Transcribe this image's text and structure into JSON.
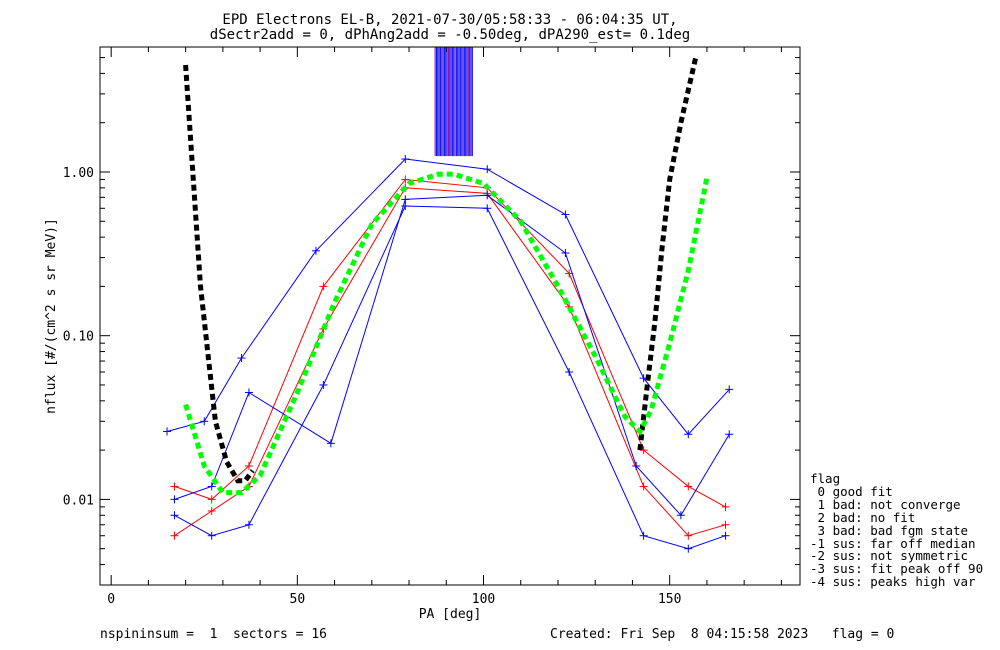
{
  "chart_data": {
    "type": "scatter",
    "title_line1": "EPD Electrons EL-B, 2021-07-30/05:58:33 - 06:04:35 UT,",
    "title_line2": "dSectr2add = 0, dPhAng2add = -0.50deg, dPA290_est=   0.1deg",
    "xlabel": "PA [deg]",
    "ylabel": "nflux [#/(cm^2 s sr MeV)]",
    "xlim": [
      -3,
      185
    ],
    "ylim": [
      0.003,
      5.8
    ],
    "yscale": "log",
    "xticks": [
      0,
      50,
      100,
      150
    ],
    "xtick_labels": [
      "0",
      "50",
      "100",
      "150"
    ],
    "yticks": [
      0.01,
      0.1,
      1.0
    ],
    "ytick_labels": [
      "0.01",
      "0.10",
      "1.00"
    ],
    "colors": {
      "red": "#ff0000",
      "blue": "#0000ff",
      "black": "#000000",
      "green": "#00ff00",
      "purple": "#8000a0"
    },
    "series": [
      {
        "color": "red",
        "style": "lines+plus",
        "x": [
          17,
          27,
          37,
          57,
          79,
          101,
          123,
          143,
          155,
          165
        ],
        "values": [
          0.006,
          0.0085,
          0.012,
          0.11,
          0.8,
          0.74,
          0.15,
          0.012,
          0.006,
          0.007
        ]
      },
      {
        "color": "red",
        "style": "lines+plus",
        "x": [
          17,
          27,
          37,
          57,
          79,
          101,
          123,
          143,
          155,
          165
        ],
        "values": [
          0.012,
          0.01,
          0.016,
          0.2,
          0.9,
          0.8,
          0.24,
          0.02,
          0.012,
          0.009
        ]
      },
      {
        "color": "blue",
        "style": "lines+plus",
        "x": [
          17,
          27,
          37,
          57,
          79,
          101,
          123,
          143,
          155,
          165
        ],
        "values": [
          0.008,
          0.006,
          0.007,
          0.05,
          0.62,
          0.6,
          0.06,
          0.006,
          0.005,
          0.006
        ]
      },
      {
        "color": "blue",
        "style": "lines+plus",
        "x": [
          15,
          25,
          35,
          55,
          79,
          101,
          122,
          143,
          155,
          166
        ],
        "values": [
          0.026,
          0.03,
          0.073,
          0.33,
          1.2,
          1.04,
          0.55,
          0.055,
          0.025,
          0.047
        ]
      },
      {
        "color": "blue",
        "style": "lines+plus",
        "x": [
          17,
          27,
          37,
          59,
          79,
          101,
          122,
          141,
          153,
          166
        ],
        "values": [
          0.01,
          0.012,
          0.045,
          0.022,
          0.68,
          0.72,
          0.32,
          0.016,
          0.008,
          0.025
        ]
      }
    ],
    "model_fits": [
      {
        "name": "",
        "color": "black",
        "style": "dashed",
        "x": [
          20,
          24,
          28,
          31,
          34,
          36,
          38
        ],
        "values": [
          4.5,
          0.2,
          0.03,
          0.017,
          0.013,
          0.013,
          0.015
        ]
      },
      {
        "name": "",
        "color": "black",
        "style": "dashed",
        "x": [
          142,
          144,
          146,
          148,
          150,
          153,
          157
        ],
        "values": [
          0.02,
          0.05,
          0.12,
          0.35,
          0.9,
          2.0,
          5.0
        ]
      },
      {
        "name": "",
        "color": "green",
        "style": "dashed",
        "x": [
          20,
          25,
          30,
          35,
          40,
          50,
          60,
          70,
          80,
          88,
          92,
          100,
          110,
          120,
          130,
          138,
          142,
          145,
          150,
          155,
          160
        ],
        "values": [
          0.038,
          0.016,
          0.011,
          0.011,
          0.014,
          0.045,
          0.16,
          0.48,
          0.85,
          0.97,
          0.97,
          0.85,
          0.5,
          0.2,
          0.075,
          0.032,
          0.026,
          0.035,
          0.09,
          0.25,
          0.92
        ]
      }
    ],
    "spike_band": {
      "x_range": [
        87,
        97
      ],
      "y_range": [
        1.25,
        5.8
      ]
    }
  },
  "footer": {
    "left": "nspininsum =  1  sectors = 16",
    "right": "Created: Fri Sep  8 04:15:58 2023   flag = 0"
  },
  "legend": {
    "title": "flag",
    "items": [
      " 0 good fit",
      " 1 bad: not converge",
      " 2 bad: no fit",
      " 3 bad: bad fgm state",
      "-1 sus: far off median",
      "-2 sus: not symmetric",
      "-3 sus: fit peak off 90",
      "-4 sus: peaks high var"
    ]
  }
}
